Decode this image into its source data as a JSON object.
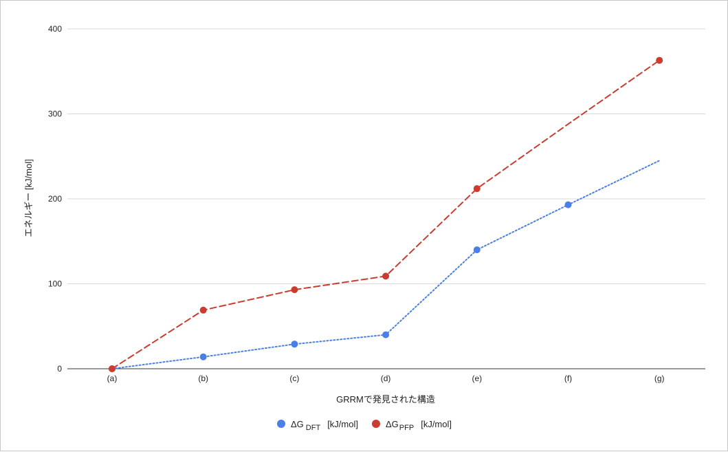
{
  "chart_data": {
    "type": "line",
    "title": "",
    "xlabel": "GRRMで発見された構造",
    "ylabel": "エネルギー [kJ/mol]",
    "categories": [
      "(a)",
      "(b)",
      "(c)",
      "(d)",
      "(e)",
      "(f)",
      "(g)"
    ],
    "yticks": [
      "0",
      "100",
      "200",
      "300",
      "400"
    ],
    "ylim": [
      0,
      400
    ],
    "grid": true,
    "legend_position": "bottom",
    "series": [
      {
        "name": "ΔG",
        "subscript": "DFT",
        "unit": "[kJ/mol]",
        "color": "#4a7fe8",
        "line_style": "dotted",
        "values": [
          0,
          14,
          29,
          40,
          140,
          193,
          245
        ],
        "markers": [
          true,
          true,
          true,
          true,
          true,
          true,
          false
        ]
      },
      {
        "name": "ΔG",
        "subscript": "PFP",
        "unit": "[kJ/mol]",
        "color": "#cc3b2e",
        "line_style": "dashed",
        "values": [
          0,
          69,
          93,
          109,
          212,
          288,
          363
        ],
        "markers": [
          true,
          true,
          true,
          true,
          true,
          false,
          true
        ]
      }
    ]
  }
}
